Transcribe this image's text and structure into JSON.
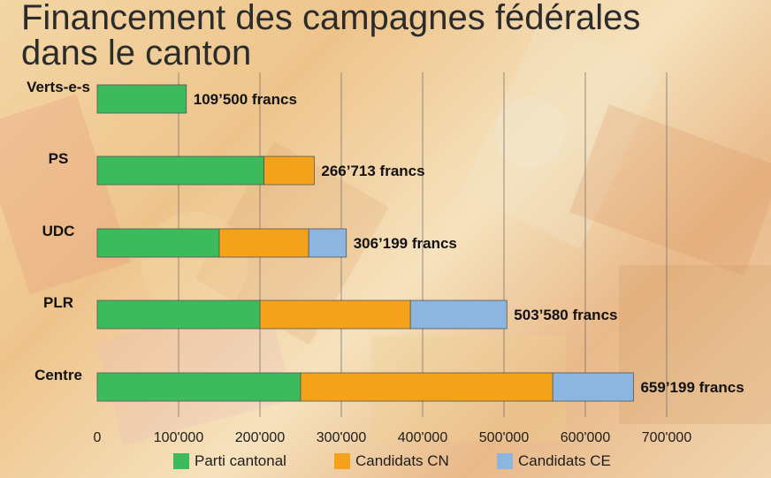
{
  "chart_data": {
    "type": "bar",
    "orientation": "horizontal",
    "stacked": true,
    "title": "Financement des campagnes fédérales\ndans le canton",
    "categories": [
      "Verts-e-s",
      "PS",
      "UDC",
      "PLR",
      "Centre"
    ],
    "series": [
      {
        "name": "Parti cantonal",
        "color": "#3dba5c",
        "values": [
          109500,
          205000,
          150000,
          200000,
          250000
        ]
      },
      {
        "name": "Candidats CN",
        "color": "#f5a21b",
        "values": [
          0,
          61713,
          110000,
          185000,
          310000
        ]
      },
      {
        "name": "Candidats CE",
        "color": "#8cb6e0",
        "values": [
          0,
          0,
          46199,
          118580,
          99199
        ]
      }
    ],
    "totals_labels": [
      "109’500 francs",
      "266’713 francs",
      "306’199 francs",
      "503’580 francs",
      "659’199 francs"
    ],
    "xlim": [
      0,
      700000
    ],
    "xticks": [
      0,
      100000,
      200000,
      300000,
      400000,
      500000,
      600000,
      700000
    ],
    "xtick_labels": [
      "0",
      "100'000",
      "200'000",
      "300'000",
      "400'000",
      "500'000",
      "600'000",
      "700'000"
    ],
    "grid": true,
    "legend_position": "bottom"
  }
}
